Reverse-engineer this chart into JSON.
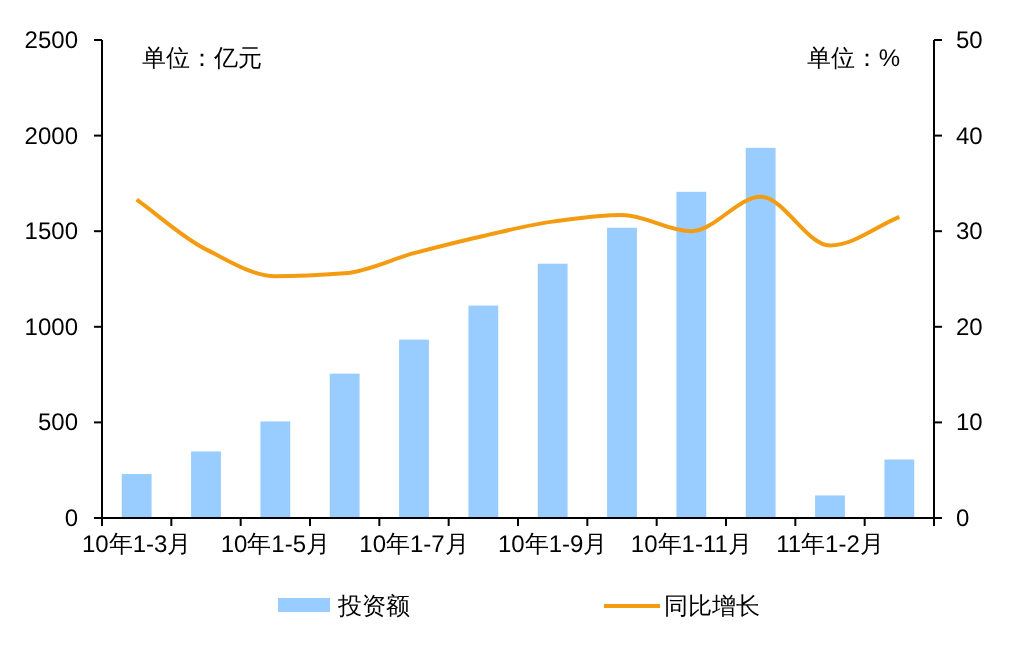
{
  "chart_data": {
    "type": "bar",
    "categories": [
      "10年1-3月",
      null,
      "10年1-5月",
      null,
      "10年1-7月",
      null,
      "10年1-9月",
      null,
      "10年1-11月",
      null,
      "11年1-2月",
      null
    ],
    "series": [
      {
        "name": "投资额",
        "color": "#99ccff",
        "values": [
          230,
          348,
          505,
          755,
          933,
          1111,
          1330,
          1518,
          1706,
          1936,
          118,
          306
        ]
      },
      {
        "name": "同比增长",
        "type": "line",
        "axis": "y2",
        "color": "#f39c12",
        "values": [
          33.3,
          28.1,
          25.3,
          25.6,
          27.7,
          29.5,
          31.0,
          31.7,
          30.0,
          33.6,
          28.5,
          31.5
        ]
      }
    ],
    "ylim": [
      0,
      2500
    ],
    "yticks": [
      0,
      500,
      1000,
      1500,
      2000,
      2500
    ],
    "y2lim": [
      0,
      50
    ],
    "y2ticks": [
      0,
      10,
      20,
      30,
      40,
      50
    ],
    "annotations": [
      "单位：亿元",
      "单位：%"
    ],
    "legend": "bottom",
    "grid": false
  }
}
